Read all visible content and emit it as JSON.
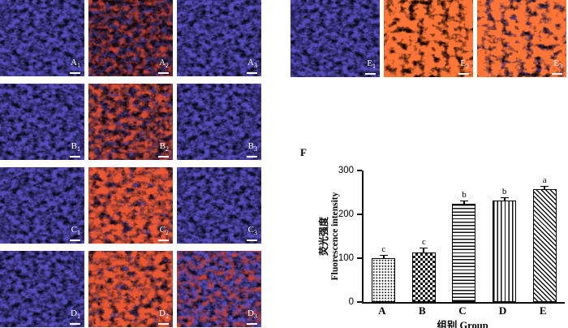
{
  "figure": {
    "chart_panel_label": "F",
    "panels": [
      {
        "id": "A1",
        "label": "A",
        "sub": "1",
        "group": "left",
        "bg": "#0d0c1f",
        "layers": [
          "blue"
        ]
      },
      {
        "id": "A2",
        "label": "A",
        "sub": "2",
        "group": "left",
        "bg": "#140a10",
        "layers": [
          "blue-dim",
          "red-faint"
        ]
      },
      {
        "id": "A3",
        "label": "A",
        "sub": "3",
        "group": "left",
        "bg": "#0d0c1f",
        "layers": [
          "blue"
        ]
      },
      {
        "id": "B1",
        "label": "B",
        "sub": "1",
        "group": "left",
        "bg": "#0d0c1f",
        "layers": [
          "blue"
        ]
      },
      {
        "id": "B2",
        "label": "B",
        "sub": "2",
        "group": "left",
        "bg": "#150a0e",
        "layers": [
          "blue-dim",
          "red-medium"
        ]
      },
      {
        "id": "B3",
        "label": "B",
        "sub": "3",
        "group": "left",
        "bg": "#0d0c1f",
        "layers": [
          "blue"
        ]
      },
      {
        "id": "C1",
        "label": "C",
        "sub": "1",
        "group": "left",
        "bg": "#0d0c1f",
        "layers": [
          "blue"
        ]
      },
      {
        "id": "C2",
        "label": "C",
        "sub": "2",
        "group": "left",
        "bg": "#160a0c",
        "layers": [
          "blue-dim",
          "red-strong"
        ]
      },
      {
        "id": "C3",
        "label": "C",
        "sub": "3",
        "group": "left",
        "bg": "#0d0c1f",
        "layers": [
          "blue"
        ]
      },
      {
        "id": "D1",
        "label": "D",
        "sub": "1",
        "group": "left",
        "bg": "#0d0c1f",
        "layers": [
          "blue"
        ]
      },
      {
        "id": "D2",
        "label": "D",
        "sub": "2",
        "group": "left",
        "bg": "#160a0c",
        "layers": [
          "blue-dim",
          "red-strong"
        ]
      },
      {
        "id": "D3",
        "label": "D",
        "sub": "3",
        "group": "left",
        "bg": "#0d0c1f",
        "layers": [
          "blue",
          "red-faint"
        ]
      },
      {
        "id": "E1",
        "label": "E",
        "sub": "1",
        "group": "e",
        "bg": "#0d0c1f",
        "layers": [
          "blue"
        ]
      },
      {
        "id": "E2",
        "label": "E",
        "sub": "2",
        "group": "e",
        "bg": "#1a0a07",
        "layers": [
          "red-bright"
        ]
      },
      {
        "id": "E3",
        "label": "E",
        "sub": "3",
        "group": "e",
        "bg": "#120a12",
        "layers": [
          "blue-dim",
          "red-bright"
        ]
      }
    ]
  },
  "chart_data": {
    "type": "bar",
    "categories": [
      "A",
      "B",
      "C",
      "D",
      "E"
    ],
    "values": [
      100,
      113,
      224,
      232,
      257
    ],
    "errors": [
      5,
      10,
      6,
      4,
      4
    ],
    "significance_labels": [
      "c",
      "c",
      "b",
      "b",
      "a"
    ],
    "ylabel_cn": "荧光强度",
    "ylabel_en": "Fluorescence intensity",
    "xlabel": "组别 Group",
    "ylim": [
      0,
      300
    ],
    "yticks": [
      0,
      100,
      200,
      300
    ],
    "bar_patterns": [
      "dots",
      "checker",
      "hlines",
      "vlines",
      "diag"
    ],
    "grid": false,
    "legend": false
  }
}
